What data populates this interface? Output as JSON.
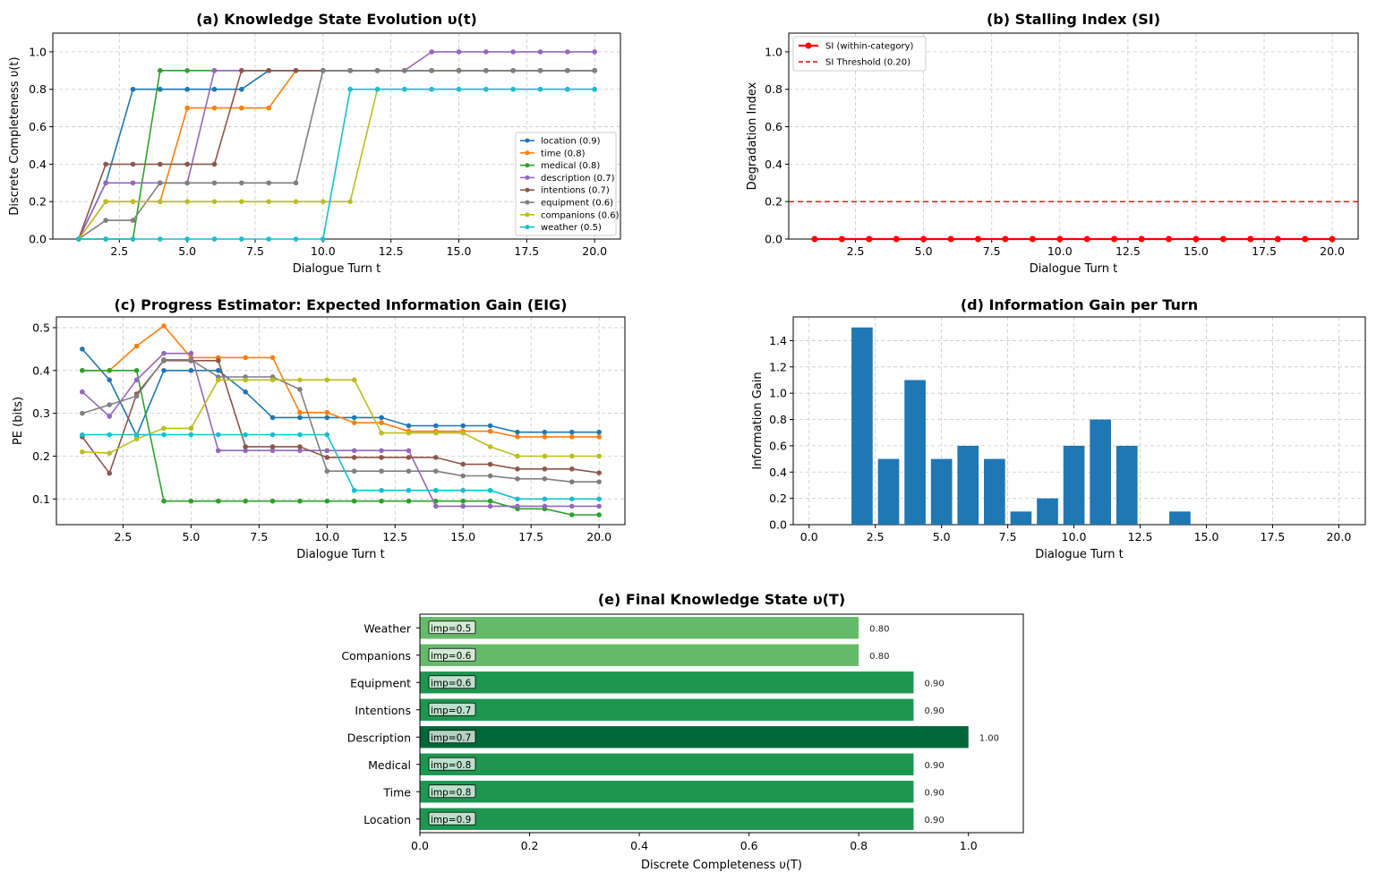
{
  "chart_data": [
    {
      "id": "a",
      "type": "line",
      "title": "(a) Knowledge State Evolution υ(t)",
      "xlabel": "Dialogue Turn t",
      "ylabel": "Discrete Completeness υ(t)",
      "xlim": [
        0.05,
        20.95
      ],
      "ylim": [
        0,
        1.1
      ],
      "xticks": [
        2.5,
        5.0,
        7.5,
        10.0,
        12.5,
        15.0,
        17.5,
        20.0
      ],
      "yticks": [
        0.0,
        0.2,
        0.4,
        0.6,
        0.8,
        1.0
      ],
      "grid": true,
      "legend_position": "center-right",
      "x": [
        1,
        2,
        3,
        4,
        5,
        6,
        7,
        8,
        9,
        10,
        11,
        12,
        13,
        14,
        15,
        16,
        17,
        18,
        19,
        20
      ],
      "series": [
        {
          "name": "location (0.9)",
          "color": "#1f77b4",
          "values": [
            0,
            0.3,
            0.8,
            0.8,
            0.8,
            0.8,
            0.8,
            0.9,
            0.9,
            0.9,
            0.9,
            0.9,
            0.9,
            0.9,
            0.9,
            0.9,
            0.9,
            0.9,
            0.9,
            0.9
          ]
        },
        {
          "name": "time (0.8)",
          "color": "#ff7f0e",
          "values": [
            0,
            0.2,
            0.2,
            0.2,
            0.7,
            0.7,
            0.7,
            0.7,
            0.9,
            0.9,
            0.9,
            0.9,
            0.9,
            0.9,
            0.9,
            0.9,
            0.9,
            0.9,
            0.9,
            0.9
          ]
        },
        {
          "name": "medical (0.8)",
          "color": "#2ca02c",
          "values": [
            0,
            0,
            0,
            0.9,
            0.9,
            0.9,
            0.9,
            0.9,
            0.9,
            0.9,
            0.9,
            0.9,
            0.9,
            0.9,
            0.9,
            0.9,
            0.9,
            0.9,
            0.9,
            0.9
          ]
        },
        {
          "name": "description (0.7)",
          "color": "#9467bd",
          "values": [
            0,
            0.3,
            0.3,
            0.3,
            0.3,
            0.9,
            0.9,
            0.9,
            0.9,
            0.9,
            0.9,
            0.9,
            0.9,
            1.0,
            1.0,
            1.0,
            1.0,
            1.0,
            1.0,
            1.0
          ]
        },
        {
          "name": "intentions (0.7)",
          "color": "#8c564b",
          "values": [
            0,
            0.4,
            0.4,
            0.4,
            0.4,
            0.4,
            0.9,
            0.9,
            0.9,
            0.9,
            0.9,
            0.9,
            0.9,
            0.9,
            0.9,
            0.9,
            0.9,
            0.9,
            0.9,
            0.9
          ]
        },
        {
          "name": "equipment (0.6)",
          "color": "#7f7f7f",
          "values": [
            0,
            0.1,
            0.1,
            0.3,
            0.3,
            0.3,
            0.3,
            0.3,
            0.3,
            0.9,
            0.9,
            0.9,
            0.9,
            0.9,
            0.9,
            0.9,
            0.9,
            0.9,
            0.9,
            0.9
          ]
        },
        {
          "name": "companions (0.6)",
          "color": "#bcbd22",
          "values": [
            0,
            0.2,
            0.2,
            0.2,
            0.2,
            0.2,
            0.2,
            0.2,
            0.2,
            0.2,
            0.2,
            0.8,
            0.8,
            0.8,
            0.8,
            0.8,
            0.8,
            0.8,
            0.8,
            0.8
          ]
        },
        {
          "name": "weather (0.5)",
          "color": "#17becf",
          "values": [
            0,
            0,
            0,
            0,
            0,
            0,
            0,
            0,
            0,
            0,
            0.8,
            0.8,
            0.8,
            0.8,
            0.8,
            0.8,
            0.8,
            0.8,
            0.8,
            0.8
          ]
        }
      ]
    },
    {
      "id": "b",
      "type": "line",
      "title": "(b) Stalling Index (SI)",
      "xlabel": "Dialogue Turn t",
      "ylabel": "Degradation Index",
      "xlim": [
        0.05,
        20.95
      ],
      "ylim": [
        0,
        1.1
      ],
      "xticks": [
        2.5,
        5.0,
        7.5,
        10.0,
        12.5,
        15.0,
        17.5,
        20.0
      ],
      "yticks": [
        0.0,
        0.2,
        0.4,
        0.6,
        0.8,
        1.0
      ],
      "grid": true,
      "legend_position": "top-left",
      "x": [
        1,
        2,
        3,
        4,
        5,
        6,
        7,
        8,
        9,
        10,
        11,
        12,
        13,
        14,
        15,
        16,
        17,
        18,
        19,
        20
      ],
      "series": [
        {
          "name": "SI (within-category)",
          "color": "#ff0000",
          "values": [
            0,
            0,
            0,
            0,
            0,
            0,
            0,
            0,
            0,
            0,
            0,
            0,
            0,
            0,
            0,
            0,
            0,
            0,
            0,
            0
          ]
        }
      ],
      "threshold": {
        "name": "SI Threshold (0.20)",
        "value": 0.2,
        "color": "#ff0000"
      }
    },
    {
      "id": "c",
      "type": "line",
      "title": "(c) Progress Estimator: Expected Information Gain (EIG)",
      "xlabel": "Dialogue Turn t",
      "ylabel": "PE (bits)",
      "xlim": [
        0.05,
        20.95
      ],
      "ylim": [
        0.04,
        0.525
      ],
      "xticks": [
        2.5,
        5.0,
        7.5,
        10.0,
        12.5,
        15.0,
        17.5,
        20.0
      ],
      "yticks": [
        0.1,
        0.2,
        0.3,
        0.4,
        0.5
      ],
      "grid": true,
      "x": [
        1,
        2,
        3,
        4,
        5,
        6,
        7,
        8,
        9,
        10,
        11,
        12,
        13,
        14,
        15,
        16,
        17,
        18,
        19,
        20
      ],
      "series": [
        {
          "name": "location",
          "color": "#1f77b4",
          "values": [
            0.45,
            0.378,
            0.248,
            0.4,
            0.4,
            0.4,
            0.35,
            0.29,
            0.29,
            0.29,
            0.29,
            0.29,
            0.271,
            0.271,
            0.271,
            0.271,
            0.256,
            0.256,
            0.256,
            0.256
          ]
        },
        {
          "name": "time",
          "color": "#ff7f0e",
          "values": [
            0.4,
            0.4,
            0.457,
            0.504,
            0.43,
            0.43,
            0.43,
            0.43,
            0.302,
            0.302,
            0.278,
            0.278,
            0.258,
            0.258,
            0.258,
            0.258,
            0.245,
            0.245,
            0.245,
            0.245
          ]
        },
        {
          "name": "medical",
          "color": "#2ca02c",
          "values": [
            0.4,
            0.4,
            0.4,
            0.095,
            0.095,
            0.095,
            0.095,
            0.095,
            0.095,
            0.095,
            0.095,
            0.095,
            0.095,
            0.095,
            0.095,
            0.095,
            0.077,
            0.077,
            0.063,
            0.063
          ]
        },
        {
          "name": "description",
          "color": "#9467bd",
          "values": [
            0.35,
            0.293,
            0.378,
            0.44,
            0.44,
            0.213,
            0.213,
            0.213,
            0.213,
            0.213,
            0.213,
            0.213,
            0.213,
            0.083,
            0.083,
            0.083,
            0.083,
            0.083,
            0.083,
            0.083
          ]
        },
        {
          "name": "intentions",
          "color": "#8c564b",
          "values": [
            0.245,
            0.16,
            0.345,
            0.423,
            0.423,
            0.423,
            0.222,
            0.222,
            0.222,
            0.197,
            0.197,
            0.197,
            0.197,
            0.197,
            0.181,
            0.181,
            0.17,
            0.17,
            0.17,
            0.161
          ]
        },
        {
          "name": "equipment",
          "color": "#7f7f7f",
          "values": [
            0.3,
            0.32,
            0.34,
            0.425,
            0.425,
            0.385,
            0.385,
            0.385,
            0.356,
            0.165,
            0.165,
            0.165,
            0.165,
            0.165,
            0.154,
            0.154,
            0.147,
            0.147,
            0.14,
            0.14
          ]
        },
        {
          "name": "companions",
          "color": "#bcbd22",
          "values": [
            0.21,
            0.207,
            0.24,
            0.265,
            0.265,
            0.378,
            0.378,
            0.378,
            0.378,
            0.378,
            0.378,
            0.254,
            0.254,
            0.254,
            0.254,
            0.222,
            0.2,
            0.2,
            0.2,
            0.2
          ]
        },
        {
          "name": "weather",
          "color": "#17becf",
          "values": [
            0.25,
            0.25,
            0.25,
            0.25,
            0.25,
            0.25,
            0.25,
            0.25,
            0.25,
            0.25,
            0.12,
            0.12,
            0.12,
            0.12,
            0.12,
            0.12,
            0.1,
            0.1,
            0.1,
            0.1
          ]
        }
      ]
    },
    {
      "id": "d",
      "type": "bar",
      "title": "(d) Information Gain per Turn",
      "xlabel": "Dialogue Turn t",
      "ylabel": "Information Gain",
      "xlim": [
        -0.6,
        21.0
      ],
      "ylim": [
        0,
        1.58
      ],
      "xticks": [
        0.0,
        2.5,
        5.0,
        7.5,
        10.0,
        12.5,
        15.0,
        17.5,
        20.0
      ],
      "yticks": [
        0.0,
        0.2,
        0.4,
        0.6,
        0.8,
        1.0,
        1.2,
        1.4
      ],
      "grid": true,
      "color": "#1f77b4",
      "x": [
        1,
        2,
        3,
        4,
        5,
        6,
        7,
        8,
        9,
        10,
        11,
        12,
        13,
        14,
        15,
        16,
        17,
        18,
        19,
        20
      ],
      "values": [
        0,
        1.5,
        0.5,
        1.1,
        0.5,
        0.6,
        0.5,
        0.1,
        0.2,
        0.6,
        0.8,
        0.6,
        0,
        0.1,
        0,
        0,
        0,
        0,
        0,
        0
      ]
    },
    {
      "id": "e",
      "type": "bar",
      "orientation": "horizontal",
      "title": "(e) Final Knowledge State υ(T)",
      "xlabel": "Discrete Completeness υ(T)",
      "ylabel": "",
      "xlim": [
        0,
        1.1
      ],
      "xticks": [
        0.0,
        0.2,
        0.4,
        0.6,
        0.8,
        1.0
      ],
      "grid": false,
      "categories": [
        "Weather",
        "Companions",
        "Equipment",
        "Intentions",
        "Description",
        "Medical",
        "Time",
        "Location"
      ],
      "values": [
        0.8,
        0.8,
        0.9,
        0.9,
        1.0,
        0.9,
        0.9,
        0.9
      ],
      "value_labels": [
        "0.80",
        "0.80",
        "0.90",
        "0.90",
        "1.00",
        "0.90",
        "0.90",
        "0.90"
      ],
      "importance_labels": [
        "imp=0.5",
        "imp=0.6",
        "imp=0.6",
        "imp=0.7",
        "imp=0.7",
        "imp=0.8",
        "imp=0.8",
        "imp=0.9"
      ],
      "colors": [
        "#66bb6a",
        "#66bb6a",
        "#1e9650",
        "#1e9650",
        "#006837",
        "#1e9650",
        "#1e9650",
        "#1e9650"
      ]
    }
  ]
}
